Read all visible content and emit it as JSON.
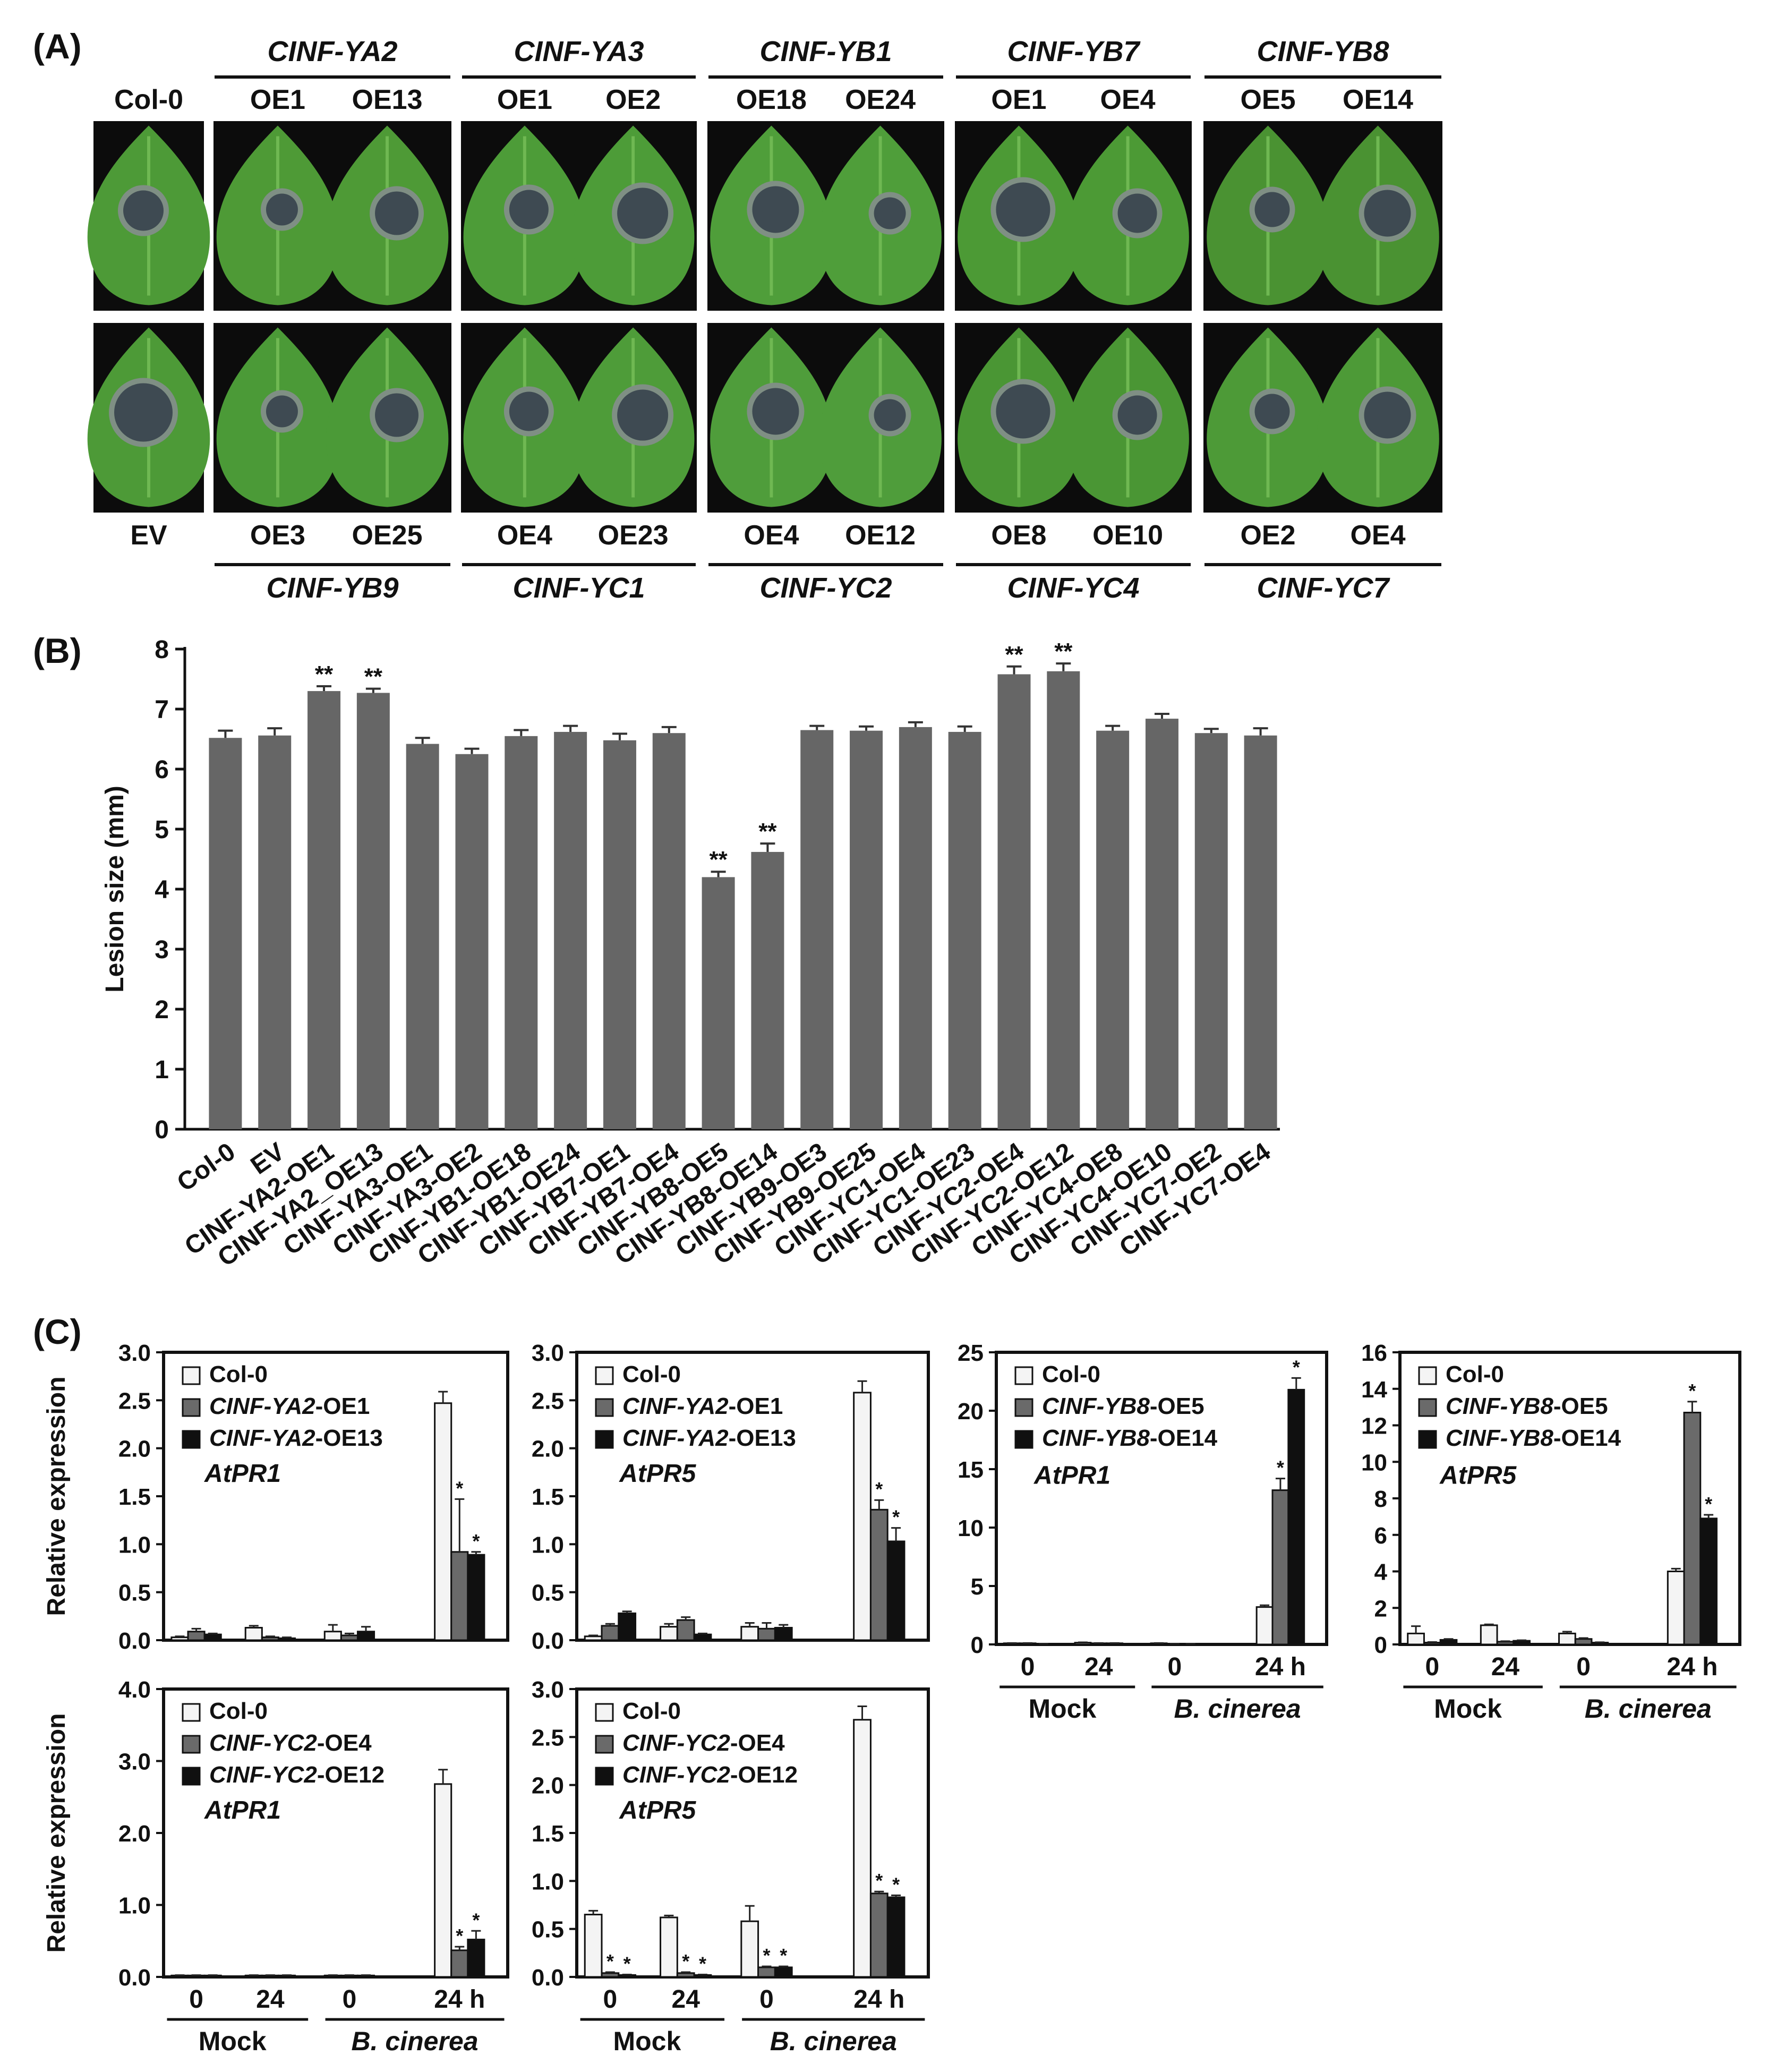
{
  "panel_labels": {
    "a": "(A)",
    "b": "(B)",
    "c": "(C)"
  },
  "panel_a": {
    "top": {
      "control": "Col-0",
      "groups": [
        {
          "gene": "CINF-YA2",
          "lines": [
            "OE1",
            "OE13"
          ],
          "leaf_color": "#4e9a36"
        },
        {
          "gene": "CINF-YA3",
          "lines": [
            "OE1",
            "OE2"
          ],
          "leaf_color": "#4d9c38"
        },
        {
          "gene": "CINF-YB1",
          "lines": [
            "OE18",
            "OE24"
          ],
          "leaf_color": "#4f9e3a"
        },
        {
          "gene": "CINF-YB7",
          "lines": [
            "OE1",
            "OE4"
          ],
          "leaf_color": "#4c9a35"
        },
        {
          "gene": "CINF-YB8",
          "lines": [
            "OE5",
            "OE14"
          ],
          "leaf_color": "#4a9232"
        }
      ]
    },
    "bottom": {
      "control": "EV",
      "groups": [
        {
          "gene": "CINF-YB9",
          "lines": [
            "OE3",
            "OE25"
          ],
          "leaf_color": "#4b9a37"
        },
        {
          "gene": "CINF-YC1",
          "lines": [
            "OE4",
            "OE23"
          ],
          "leaf_color": "#4e9c39"
        },
        {
          "gene": "CINF-YC2",
          "lines": [
            "OE4",
            "OE12"
          ],
          "leaf_color": "#4f9d3b"
        },
        {
          "gene": "CINF-YC4",
          "lines": [
            "OE8",
            "OE10"
          ],
          "leaf_color": "#4a9634"
        },
        {
          "gene": "CINF-YC7",
          "lines": [
            "OE2",
            "OE4"
          ],
          "leaf_color": "#4d9a37"
        }
      ]
    }
  },
  "chart_data": [
    {
      "type": "bar",
      "panel": "B",
      "title": "",
      "xlabel": "",
      "ylabel": "Lesion size (mm)",
      "ylim": [
        0,
        8
      ],
      "yticks": [
        "0",
        "1",
        "2",
        "3",
        "4",
        "5",
        "6",
        "7",
        "8"
      ],
      "ytick_values": [
        0,
        1,
        2,
        3,
        4,
        5,
        6,
        7,
        8
      ],
      "bar_color": "#666666",
      "categories": [
        "Col-0",
        "EV",
        "CINF-YA2-OE1",
        "CINF-YA2_OE13",
        "CINF-YA3-OE1",
        "CINF-YA3-OE2",
        "CINF-YB1-OE18",
        "CINF-YB1-OE24",
        "CINF-YB7-OE1",
        "CINF-YB7-OE4",
        "CINF-YB8-OE5",
        "CINF-YB8-OE14",
        "CINF-YB9-OE3",
        "CINF-YB9-OE25",
        "CINF-YC1-OE4",
        "CINF-YC1-OE23",
        "CINF-YC2-OE4",
        "CINF-YC2-OE12",
        "CINF-YC4-OE8",
        "CINF-YC4-OE10",
        "CINF-YC7-OE2",
        "CINF-YC7-OE4"
      ],
      "values": [
        6.52,
        6.56,
        7.3,
        7.27,
        6.42,
        6.25,
        6.55,
        6.62,
        6.48,
        6.6,
        4.2,
        4.62,
        6.65,
        6.64,
        6.7,
        6.62,
        7.58,
        7.63,
        6.64,
        6.84,
        6.6,
        6.56
      ],
      "errors": [
        0.12,
        0.12,
        0.08,
        0.07,
        0.1,
        0.09,
        0.1,
        0.1,
        0.11,
        0.1,
        0.09,
        0.14,
        0.07,
        0.07,
        0.08,
        0.09,
        0.13,
        0.13,
        0.08,
        0.08,
        0.07,
        0.12
      ],
      "significance": [
        "",
        "",
        "**",
        "**",
        "",
        "",
        "",
        "",
        "",
        "",
        "**",
        "**",
        "",
        "",
        "",
        "",
        "**",
        "**",
        "",
        "",
        "",
        ""
      ]
    },
    {
      "type": "bar",
      "panel": "C1",
      "gene_label": "AtPR1",
      "ylabel": "Relative expression",
      "ylim": [
        0,
        3.0
      ],
      "yticks": [
        "0.0",
        "0.5",
        "1.0",
        "1.5",
        "2.0",
        "2.5",
        "3.0"
      ],
      "ytick_values": [
        0,
        0.5,
        1.0,
        1.5,
        2.0,
        2.5,
        3.0
      ],
      "categories": [
        "0",
        "24",
        "0",
        "24 h"
      ],
      "groups": [
        "Mock",
        "B. cinerea"
      ],
      "series": [
        {
          "name": "Col-0",
          "color": "#f4f4f4",
          "values": [
            0.03,
            0.13,
            0.09,
            2.47
          ],
          "errors": [
            0.01,
            0.02,
            0.07,
            0.12
          ],
          "sig": [
            "",
            "",
            "",
            ""
          ]
        },
        {
          "name": "-OE1",
          "gene": "CINF-YA2",
          "color": "#6a6a6a",
          "values": [
            0.09,
            0.03,
            0.05,
            0.92
          ],
          "errors": [
            0.03,
            0.01,
            0.02,
            0.55
          ],
          "sig": [
            "",
            "",
            "",
            "*"
          ]
        },
        {
          "name": "-OE13",
          "gene": "CINF-YA2",
          "color": "#101010",
          "values": [
            0.06,
            0.02,
            0.09,
            0.89
          ],
          "errors": [
            0.01,
            0.01,
            0.05,
            0.03
          ],
          "sig": [
            "",
            "",
            "",
            "*"
          ]
        }
      ]
    },
    {
      "type": "bar",
      "panel": "C2",
      "gene_label": "AtPR5",
      "ylabel": "",
      "ylim": [
        0,
        3.0
      ],
      "yticks": [
        "0.0",
        "0.5",
        "1.0",
        "1.5",
        "2.0",
        "2.5",
        "3.0"
      ],
      "ytick_values": [
        0,
        0.5,
        1.0,
        1.5,
        2.0,
        2.5,
        3.0
      ],
      "categories": [
        "0",
        "24",
        "0",
        "24 h"
      ],
      "groups": [
        "Mock",
        "B. cinerea"
      ],
      "series": [
        {
          "name": "Col-0",
          "color": "#f4f4f4",
          "values": [
            0.04,
            0.14,
            0.14,
            2.58
          ],
          "errors": [
            0.01,
            0.03,
            0.04,
            0.12
          ],
          "sig": [
            "",
            "",
            "",
            ""
          ]
        },
        {
          "name": "-OE1",
          "gene": "CINF-YA2",
          "color": "#6a6a6a",
          "values": [
            0.15,
            0.21,
            0.12,
            1.36
          ],
          "errors": [
            0.02,
            0.03,
            0.06,
            0.1
          ],
          "sig": [
            "",
            "",
            "",
            "*"
          ]
        },
        {
          "name": "-OE13",
          "gene": "CINF-YA2",
          "color": "#101010",
          "values": [
            0.28,
            0.06,
            0.13,
            1.03
          ],
          "errors": [
            0.02,
            0.01,
            0.03,
            0.14
          ],
          "sig": [
            "",
            "",
            "",
            "*"
          ]
        }
      ]
    },
    {
      "type": "bar",
      "panel": "C3",
      "gene_label": "AtPR1",
      "ylabel": "",
      "ylim": [
        0,
        25
      ],
      "yticks": [
        "0",
        "5",
        "10",
        "15",
        "20",
        "25"
      ],
      "ytick_values": [
        0,
        5,
        10,
        15,
        20,
        25
      ],
      "categories": [
        "0",
        "24",
        "0",
        "24 h"
      ],
      "groups": [
        "Mock",
        "B. cinerea"
      ],
      "series": [
        {
          "name": "Col-0",
          "color": "#f4f4f4",
          "values": [
            0.1,
            0.15,
            0.1,
            3.2
          ],
          "errors": [
            0.02,
            0.03,
            0.02,
            0.15
          ],
          "sig": [
            "",
            "",
            "",
            ""
          ]
        },
        {
          "name": "-OE5",
          "gene": "CINF-YB8",
          "color": "#6a6a6a",
          "values": [
            0.1,
            0.1,
            0.05,
            13.2
          ],
          "errors": [
            0.02,
            0.02,
            0.01,
            1.0
          ],
          "sig": [
            "",
            "",
            "",
            "*"
          ]
        },
        {
          "name": "-OE14",
          "gene": "CINF-YB8",
          "color": "#101010",
          "values": [
            0.05,
            0.1,
            0.05,
            21.8
          ],
          "errors": [
            0.01,
            0.02,
            0.01,
            1.0
          ],
          "sig": [
            "",
            "",
            "",
            "*"
          ]
        }
      ]
    },
    {
      "type": "bar",
      "panel": "C4",
      "gene_label": "AtPR5",
      "ylabel": "",
      "ylim": [
        0,
        16
      ],
      "yticks": [
        "0",
        "2",
        "4",
        "6",
        "8",
        "10",
        "12",
        "14",
        "16"
      ],
      "ytick_values": [
        0,
        2,
        4,
        6,
        8,
        10,
        12,
        14,
        16
      ],
      "categories": [
        "0",
        "24",
        "0",
        "24 h"
      ],
      "groups": [
        "Mock",
        "B. cinerea"
      ],
      "series": [
        {
          "name": "Col-0",
          "color": "#f4f4f4",
          "values": [
            0.6,
            1.05,
            0.6,
            4.0
          ],
          "errors": [
            0.4,
            0.05,
            0.1,
            0.15
          ],
          "sig": [
            "",
            "",
            "",
            ""
          ]
        },
        {
          "name": "-OE5",
          "gene": "CINF-YB8",
          "color": "#6a6a6a",
          "values": [
            0.1,
            0.15,
            0.3,
            12.7
          ],
          "errors": [
            0.03,
            0.03,
            0.05,
            0.6
          ],
          "sig": [
            "",
            "",
            "",
            "*"
          ]
        },
        {
          "name": "-OE14",
          "gene": "CINF-YB8",
          "color": "#101010",
          "values": [
            0.25,
            0.2,
            0.1,
            6.9
          ],
          "errors": [
            0.05,
            0.03,
            0.02,
            0.2
          ],
          "sig": [
            "",
            "",
            "",
            "*"
          ]
        }
      ]
    },
    {
      "type": "bar",
      "panel": "C5",
      "gene_label": "AtPR1",
      "ylabel": "Relative expression",
      "ylim": [
        0,
        4.0
      ],
      "yticks": [
        "0.0",
        "1.0",
        "2.0",
        "3.0",
        "4.0"
      ],
      "ytick_values": [
        0,
        1.0,
        2.0,
        3.0,
        4.0
      ],
      "categories": [
        "0",
        "24",
        "0",
        "24 h"
      ],
      "groups": [
        "Mock",
        "B. cinerea"
      ],
      "series": [
        {
          "name": "Col-0",
          "color": "#f4f4f4",
          "values": [
            0.02,
            0.02,
            0.02,
            2.68
          ],
          "errors": [
            0.005,
            0.005,
            0.005,
            0.2
          ],
          "sig": [
            "",
            "",
            "",
            ""
          ]
        },
        {
          "name": "-OE4",
          "gene": "CINF-YC2",
          "color": "#6a6a6a",
          "values": [
            0.02,
            0.02,
            0.02,
            0.37
          ],
          "errors": [
            0.005,
            0.005,
            0.005,
            0.05
          ],
          "sig": [
            "",
            "",
            "",
            "*"
          ]
        },
        {
          "name": "-OE12",
          "gene": "CINF-YC2",
          "color": "#101010",
          "values": [
            0.02,
            0.02,
            0.02,
            0.52
          ],
          "errors": [
            0.005,
            0.005,
            0.005,
            0.12
          ],
          "sig": [
            "",
            "",
            "",
            "*"
          ]
        }
      ]
    },
    {
      "type": "bar",
      "panel": "C6",
      "gene_label": "AtPR5",
      "ylabel": "",
      "ylim": [
        0,
        3.0
      ],
      "yticks": [
        "0.0",
        "0.5",
        "1.0",
        "1.5",
        "2.0",
        "2.5",
        "3.0"
      ],
      "ytick_values": [
        0,
        0.5,
        1.0,
        1.5,
        2.0,
        2.5,
        3.0
      ],
      "categories": [
        "0",
        "24",
        "0",
        "24 h"
      ],
      "groups": [
        "Mock",
        "B. cinerea"
      ],
      "series": [
        {
          "name": "Col-0",
          "color": "#f4f4f4",
          "values": [
            0.65,
            0.62,
            0.58,
            2.68
          ],
          "errors": [
            0.04,
            0.02,
            0.16,
            0.14
          ],
          "sig": [
            "",
            "",
            "",
            ""
          ]
        },
        {
          "name": "-OE4",
          "gene": "CINF-YC2",
          "color": "#6a6a6a",
          "values": [
            0.04,
            0.04,
            0.1,
            0.87
          ],
          "errors": [
            0.01,
            0.01,
            0.01,
            0.02
          ],
          "sig": [
            "*",
            "*",
            "*",
            "*"
          ]
        },
        {
          "name": "-OE12",
          "gene": "CINF-YC2",
          "color": "#101010",
          "values": [
            0.02,
            0.02,
            0.1,
            0.83
          ],
          "errors": [
            0.005,
            0.005,
            0.01,
            0.02
          ],
          "sig": [
            "*",
            "*",
            "*",
            "*"
          ]
        }
      ]
    }
  ]
}
